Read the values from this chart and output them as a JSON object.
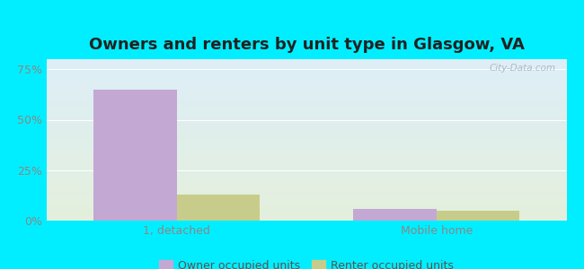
{
  "title": "Owners and renters by unit type in Glasgow, VA",
  "categories": [
    "1, detached",
    "Mobile home"
  ],
  "owner_values": [
    65.1,
    5.9
  ],
  "renter_values": [
    13.0,
    4.7
  ],
  "owner_color": "#c4a8d4",
  "renter_color": "#c8cc8a",
  "bar_width": 0.32,
  "ylim": [
    0,
    0.8
  ],
  "yticks": [
    0.0,
    0.25,
    0.5,
    0.75
  ],
  "yticklabels": [
    "0%",
    "25%",
    "50%",
    "75%"
  ],
  "legend_owner": "Owner occupied units",
  "legend_renter": "Renter occupied units",
  "figure_bg": "#00eeff",
  "plot_bg_top": "#ddeef8",
  "plot_bg_bottom": "#e4f0dc",
  "watermark": "City-Data.com",
  "title_fontsize": 13,
  "tick_fontsize": 9,
  "legend_fontsize": 9,
  "grid_color": "#ffffff",
  "tick_color": "#888888"
}
